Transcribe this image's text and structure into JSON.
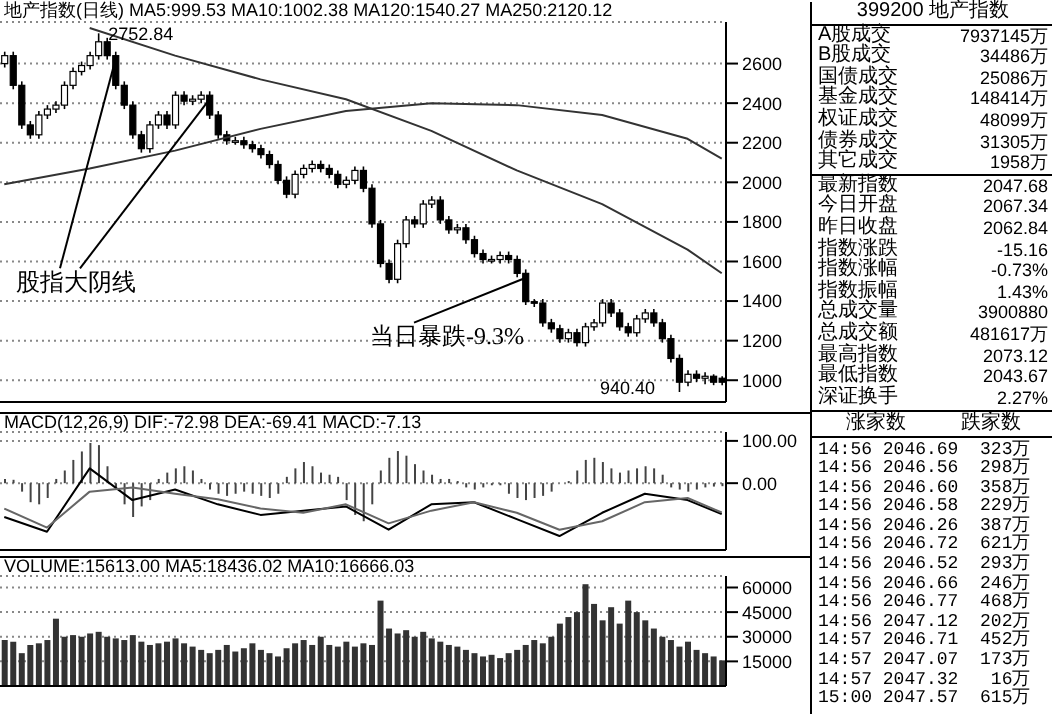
{
  "chart_data": [
    {
      "type": "candlestick",
      "title": "地产指数(日线) MA5:999.53 MA10:1002.38 MA120:1540.27 MA250:2120.12",
      "color": "#000000",
      "categories": [
        null,
        null,
        null,
        null,
        null,
        null,
        null,
        null,
        null,
        null,
        null,
        null,
        null,
        null,
        null,
        null,
        null,
        null,
        null,
        null,
        null,
        null,
        null,
        null,
        null,
        null,
        null,
        null,
        null,
        null,
        null,
        null,
        null,
        null,
        null,
        null,
        null,
        null,
        null,
        null,
        null,
        null,
        null,
        null,
        null,
        null,
        null,
        null,
        null,
        null,
        null,
        null,
        null,
        null,
        null,
        null,
        null,
        null,
        null,
        null,
        null,
        null,
        null,
        null,
        null,
        null,
        null,
        null,
        null,
        null,
        null,
        null,
        null,
        null,
        null,
        null,
        null,
        null,
        null,
        null,
        null,
        null,
        null,
        null,
        null
      ],
      "ohlc": [
        [
          2600,
          2660,
          2580,
          2640
        ],
        [
          2640,
          2660,
          2470,
          2490
        ],
        [
          2490,
          2510,
          2270,
          2290
        ],
        [
          2290,
          2310,
          2220,
          2240
        ],
        [
          2240,
          2360,
          2220,
          2340
        ],
        [
          2340,
          2390,
          2320,
          2370
        ],
        [
          2370,
          2410,
          2350,
          2390
        ],
        [
          2390,
          2510,
          2370,
          2490
        ],
        [
          2490,
          2580,
          2470,
          2560
        ],
        [
          2560,
          2610,
          2540,
          2590
        ],
        [
          2590,
          2660,
          2570,
          2640
        ],
        [
          2640,
          2752.84,
          2620,
          2710
        ],
        [
          2710,
          2730,
          2620,
          2640
        ],
        [
          2640,
          2660,
          2470,
          2490
        ],
        [
          2490,
          2510,
          2370,
          2390
        ],
        [
          2390,
          2410,
          2220,
          2240
        ],
        [
          2240,
          2260,
          2150,
          2170
        ],
        [
          2170,
          2310,
          2150,
          2290
        ],
        [
          2290,
          2360,
          2270,
          2340
        ],
        [
          2340,
          2360,
          2270,
          2290
        ],
        [
          2290,
          2460,
          2270,
          2440
        ],
        [
          2440,
          2460,
          2390,
          2410
        ],
        [
          2410,
          2440,
          2390,
          2420
        ],
        [
          2420,
          2460,
          2400,
          2440
        ],
        [
          2440,
          2460,
          2320,
          2340
        ],
        [
          2340,
          2360,
          2220,
          2240
        ],
        [
          2240,
          2260,
          2190,
          2210
        ],
        [
          2210,
          2230,
          2190,
          2210
        ],
        [
          2210,
          2230,
          2170,
          2190
        ],
        [
          2190,
          2210,
          2150,
          2170
        ],
        [
          2170,
          2190,
          2120,
          2140
        ],
        [
          2140,
          2160,
          2070,
          2090
        ],
        [
          2090,
          2110,
          1990,
          2010
        ],
        [
          2010,
          2030,
          1920,
          1940
        ],
        [
          1940,
          2060,
          1920,
          2040
        ],
        [
          2040,
          2090,
          2020,
          2070
        ],
        [
          2070,
          2110,
          2050,
          2090
        ],
        [
          2090,
          2110,
          2050,
          2070
        ],
        [
          2070,
          2090,
          2020,
          2040
        ],
        [
          2040,
          2060,
          1970,
          1990
        ],
        [
          1990,
          2030,
          1970,
          2010
        ],
        [
          2010,
          2080,
          1990,
          2060
        ],
        [
          2060,
          2080,
          1950,
          1970
        ],
        [
          1970,
          1990,
          1770,
          1790
        ],
        [
          1790,
          1810,
          1570,
          1590
        ],
        [
          1590,
          1610,
          1490,
          1510
        ],
        [
          1510,
          1710,
          1490,
          1690
        ],
        [
          1690,
          1830,
          1670,
          1810
        ],
        [
          1810,
          1830,
          1770,
          1790
        ],
        [
          1790,
          1910,
          1770,
          1890
        ],
        [
          1890,
          1930,
          1870,
          1910
        ],
        [
          1910,
          1930,
          1790,
          1810
        ],
        [
          1810,
          1830,
          1740,
          1760
        ],
        [
          1760,
          1790,
          1740,
          1770
        ],
        [
          1770,
          1790,
          1690,
          1710
        ],
        [
          1710,
          1730,
          1620,
          1640
        ],
        [
          1640,
          1660,
          1590,
          1610
        ],
        [
          1610,
          1630,
          1590,
          1610
        ],
        [
          1610,
          1650,
          1590,
          1630
        ],
        [
          1630,
          1650,
          1590,
          1610
        ],
        [
          1610,
          1630,
          1520,
          1540
        ],
        [
          1540,
          1560,
          1380,
          1397
        ],
        [
          1397,
          1410,
          1370,
          1390
        ],
        [
          1390,
          1410,
          1270,
          1290
        ],
        [
          1290,
          1310,
          1240,
          1260
        ],
        [
          1260,
          1280,
          1190,
          1210
        ],
        [
          1210,
          1260,
          1190,
          1240
        ],
        [
          1240,
          1260,
          1170,
          1190
        ],
        [
          1190,
          1290,
          1170,
          1270
        ],
        [
          1270,
          1310,
          1250,
          1290
        ],
        [
          1290,
          1410,
          1270,
          1390
        ],
        [
          1390,
          1410,
          1320,
          1340
        ],
        [
          1340,
          1360,
          1250,
          1270
        ],
        [
          1270,
          1290,
          1220,
          1240
        ],
        [
          1240,
          1330,
          1220,
          1310
        ],
        [
          1310,
          1360,
          1290,
          1340
        ],
        [
          1340,
          1360,
          1270,
          1290
        ],
        [
          1290,
          1310,
          1190,
          1210
        ],
        [
          1210,
          1230,
          1090,
          1110
        ],
        [
          1110,
          1130,
          940.4,
          990
        ],
        [
          990,
          1050,
          970,
          1030
        ],
        [
          1030,
          1050,
          990,
          1010
        ],
        [
          1010,
          1040,
          980,
          1020
        ],
        [
          1020,
          1030,
          975,
          990
        ],
        [
          1010,
          1020,
          975,
          990
        ]
      ],
      "series": [
        {
          "type": "line",
          "color": "#333333",
          "values": [
            null,
            null,
            null,
            null,
            null,
            null,
            null,
            null,
            null,
            null,
            2780,
            null,
            null,
            null,
            null,
            null,
            null,
            null,
            null,
            null,
            2640,
            null,
            null,
            null,
            null,
            null,
            null,
            null,
            null,
            null,
            2520,
            null,
            null,
            null,
            null,
            null,
            null,
            null,
            null,
            null,
            2420,
            null,
            null,
            null,
            null,
            null,
            null,
            null,
            null,
            null,
            2260,
            null,
            null,
            null,
            null,
            null,
            null,
            null,
            null,
            null,
            2060,
            null,
            null,
            null,
            null,
            null,
            null,
            null,
            null,
            null,
            1890,
            null,
            null,
            null,
            null,
            null,
            null,
            null,
            null,
            null,
            1660,
            null,
            null,
            null,
            1540.27
          ]
        },
        {
          "type": "line",
          "color": "#333333",
          "values": [
            1990,
            null,
            null,
            null,
            null,
            null,
            null,
            null,
            null,
            null,
            2070,
            null,
            null,
            null,
            null,
            null,
            null,
            null,
            null,
            null,
            2160,
            null,
            null,
            null,
            null,
            null,
            null,
            null,
            null,
            null,
            2270,
            null,
            null,
            null,
            null,
            null,
            null,
            null,
            null,
            null,
            2360,
            null,
            null,
            null,
            null,
            null,
            null,
            null,
            null,
            null,
            2400,
            null,
            null,
            null,
            null,
            null,
            null,
            null,
            null,
            null,
            2390,
            null,
            null,
            null,
            null,
            null,
            null,
            null,
            null,
            null,
            2340,
            null,
            null,
            null,
            null,
            null,
            null,
            null,
            null,
            null,
            2220,
            null,
            null,
            null,
            2120.12
          ]
        }
      ],
      "ylim": [
        890,
        2810
      ],
      "yticks": [
        1000,
        1200,
        1400,
        1600,
        1800,
        2000,
        2200,
        2400,
        2600
      ],
      "grid": "y",
      "annotations": [
        {
          "text": "2752.84",
          "y": 2752.84
        },
        "940.40",
        "股指大阴线",
        "当日暴跌-9.3%"
      ]
    },
    {
      "type": "bar",
      "title": "MACD(12,26,9) DIF:-72.98 DEA:-69.41 MACD:-7.13",
      "categories": [
        null,
        null,
        null,
        null,
        null,
        null,
        null,
        null,
        null,
        null,
        null,
        null,
        null,
        null,
        null,
        null,
        null,
        null,
        null,
        null,
        null,
        null,
        null,
        null,
        null,
        null,
        null,
        null,
        null,
        null,
        null,
        null,
        null,
        null,
        null,
        null,
        null,
        null,
        null,
        null,
        null,
        null,
        null,
        null,
        null,
        null,
        null,
        null,
        null,
        null,
        null,
        null,
        null,
        null,
        null,
        null,
        null,
        null,
        null,
        null,
        null,
        null,
        null,
        null,
        null,
        null,
        null,
        null,
        null,
        null,
        null,
        null,
        null,
        null,
        null,
        null,
        null,
        null,
        null,
        null,
        null,
        null,
        null,
        null,
        null
      ],
      "series": [
        {
          "type": "bar",
          "color": "#444444",
          "values": [
            10,
            8,
            -20,
            -45,
            -50,
            -35,
            10,
            30,
            55,
            75,
            95,
            90,
            40,
            -10,
            -50,
            -80,
            -55,
            -40,
            10,
            25,
            35,
            40,
            30,
            10,
            -15,
            -25,
            -30,
            -25,
            -20,
            -25,
            -30,
            -35,
            -25,
            15,
            35,
            50,
            40,
            25,
            20,
            15,
            -40,
            -75,
            -90,
            -50,
            30,
            60,
            76,
            65,
            45,
            30,
            20,
            10,
            10,
            5,
            -10,
            -15,
            -10,
            -5,
            -5,
            -25,
            -35,
            -40,
            -35,
            -30,
            -20,
            0,
            5,
            30,
            55,
            60,
            50,
            35,
            25,
            30,
            35,
            40,
            35,
            20,
            -10,
            -15,
            -20,
            -15,
            -10,
            -8,
            -7.13
          ]
        },
        {
          "type": "line",
          "color": "#000000",
          "values": [
            -80,
            null,
            null,
            null,
            null,
            -115,
            null,
            null,
            null,
            null,
            35,
            null,
            null,
            null,
            null,
            -40,
            null,
            null,
            null,
            null,
            -15,
            null,
            null,
            null,
            null,
            -50,
            null,
            null,
            null,
            null,
            -75,
            null,
            null,
            null,
            null,
            -65,
            null,
            null,
            null,
            null,
            -55,
            null,
            null,
            null,
            null,
            -110,
            null,
            null,
            null,
            null,
            -50,
            null,
            null,
            null,
            null,
            -45,
            null,
            null,
            null,
            null,
            -85,
            null,
            null,
            null,
            null,
            -125,
            null,
            null,
            null,
            null,
            -70,
            null,
            null,
            null,
            null,
            -25,
            null,
            null,
            null,
            null,
            -40,
            null,
            null,
            null,
            -72.98
          ]
        },
        {
          "type": "line",
          "color": "#666666",
          "values": [
            -60,
            null,
            null,
            null,
            null,
            -105,
            null,
            null,
            null,
            null,
            -20,
            null,
            null,
            null,
            null,
            -10,
            null,
            null,
            null,
            null,
            -25,
            null,
            null,
            null,
            null,
            -38,
            null,
            null,
            null,
            null,
            -60,
            null,
            null,
            null,
            null,
            -70,
            null,
            null,
            null,
            null,
            -50,
            null,
            null,
            null,
            null,
            -95,
            null,
            null,
            null,
            null,
            -65,
            null,
            null,
            null,
            null,
            -45,
            null,
            null,
            null,
            null,
            -70,
            null,
            null,
            null,
            null,
            -110,
            null,
            null,
            null,
            null,
            -90,
            null,
            null,
            null,
            null,
            -45,
            null,
            null,
            null,
            null,
            -35,
            null,
            null,
            null,
            -69.41
          ]
        }
      ],
      "ylim": [
        -158,
        121
      ],
      "yticks": [
        {
          "value": 0,
          "label": "0.00"
        },
        {
          "value": 100,
          "label": "100.00"
        }
      ],
      "grid": "y"
    },
    {
      "type": "bar",
      "title": "VOLUME:15613.00 MA5:18436.02 MA10:16666.03",
      "color": "#333333",
      "categories": [
        null,
        null,
        null,
        null,
        null,
        null,
        null,
        null,
        null,
        null,
        null,
        null,
        null,
        null,
        null,
        null,
        null,
        null,
        null,
        null,
        null,
        null,
        null,
        null,
        null,
        null,
        null,
        null,
        null,
        null,
        null,
        null,
        null,
        null,
        null,
        null,
        null,
        null,
        null,
        null,
        null,
        null,
        null,
        null,
        null,
        null,
        null,
        null,
        null,
        null,
        null,
        null,
        null,
        null,
        null,
        null,
        null,
        null,
        null,
        null,
        null,
        null,
        null,
        null,
        null,
        null,
        null,
        null,
        null,
        null,
        null,
        null,
        null,
        null,
        null,
        null,
        null,
        null,
        null,
        null,
        null,
        null,
        null,
        null,
        null
      ],
      "values": [
        28000,
        27000,
        20000,
        25000,
        26000,
        28000,
        41000,
        30000,
        31000,
        30000,
        32000,
        33000,
        30000,
        29000,
        28000,
        31000,
        27000,
        25000,
        26000,
        27000,
        29000,
        26000,
        24000,
        22000,
        20000,
        22000,
        25000,
        21000,
        23000,
        26000,
        22000,
        20000,
        18000,
        23000,
        26000,
        28000,
        25000,
        30000,
        25000,
        24000,
        27000,
        24000,
        26000,
        25000,
        52000,
        35000,
        32000,
        34000,
        30000,
        33000,
        29000,
        27000,
        25000,
        24000,
        22000,
        20000,
        18000,
        19000,
        17000,
        20000,
        22000,
        25000,
        28000,
        26000,
        30000,
        38000,
        42000,
        45000,
        62000,
        50000,
        40000,
        48000,
        38000,
        52000,
        45000,
        40000,
        35000,
        30000,
        28000,
        24000,
        27000,
        22000,
        20000,
        18000,
        15613
      ],
      "ylim": [
        0,
        67000
      ],
      "yticks": [
        15000,
        30000,
        45000,
        60000
      ],
      "grid": "y"
    },
    {
      "type": "other",
      "title": "399200 地产指数",
      "categories": [
        "A股成交",
        "B股成交",
        "国债成交",
        "基金成交",
        "权证成交",
        "债券成交",
        "其它成交",
        "最新指数",
        "今日开盘",
        "昨日收盘",
        "指数涨跌",
        "指数涨幅",
        "指数振幅",
        "总成交量",
        "总成交额",
        "最高指数",
        "最低指数",
        "深证换手"
      ],
      "value_labels": [
        "7937145万",
        "34486万",
        "25086万",
        "148414万",
        "48099万",
        "31305万",
        "1958万",
        "2047.68",
        "2067.34",
        "2062.84",
        "-15.16",
        "-0.73%",
        "1.43%",
        "3900880",
        "481617万",
        "2073.12",
        "2043.67",
        "2.27%"
      ]
    },
    {
      "type": "other",
      "categories": [
        "涨家数",
        "跌家数"
      ],
      "cell_labels": [
        [
          "14:56",
          "2046.69",
          "323万"
        ],
        [
          "14:56",
          "2046.56",
          "298万"
        ],
        [
          "14:56",
          "2046.60",
          "358万"
        ],
        [
          "14:56",
          "2046.58",
          "229万"
        ],
        [
          "14:56",
          "2046.26",
          "387万"
        ],
        [
          "14:56",
          "2046.72",
          "621万"
        ],
        [
          "14:56",
          "2046.52",
          "293万"
        ],
        [
          "14:56",
          "2046.66",
          "246万"
        ],
        [
          "14:56",
          "2046.77",
          "468万"
        ],
        [
          "14:56",
          "2047.12",
          "202万"
        ],
        [
          "14:57",
          "2046.71",
          "452万"
        ],
        [
          "14:57",
          "2047.07",
          "173万"
        ],
        [
          "14:57",
          "2047.32",
          "16万"
        ],
        [
          "15:00",
          "2047.57",
          "615万"
        ]
      ]
    }
  ]
}
